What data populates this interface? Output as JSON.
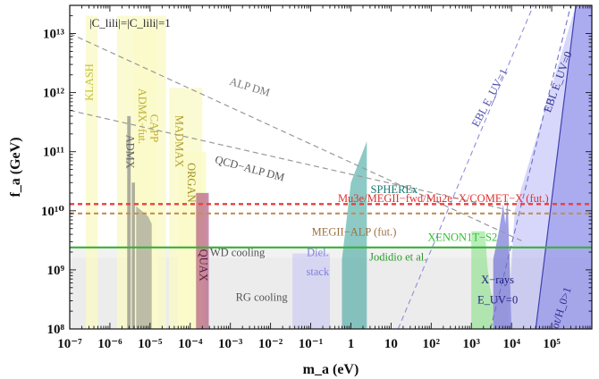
{
  "chart_data": {
    "type": "area",
    "title": "",
    "xlabel": "m_a (eV)",
    "ylabel": "f_a (GeV)",
    "x_scale": "log",
    "y_scale": "log",
    "xlim": [
      1e-07,
      1000000.0
    ],
    "ylim": [
      100000000.0,
      30000000000000.0
    ],
    "x_ticks": [
      {
        "value": 1e-07,
        "label": "10⁻⁷"
      },
      {
        "value": 1e-06,
        "label": "10⁻⁶"
      },
      {
        "value": 1e-05,
        "label": "10⁻⁵"
      },
      {
        "value": 0.0001,
        "label": "10⁻⁴"
      },
      {
        "value": 0.001,
        "label": "10⁻³"
      },
      {
        "value": 0.01,
        "label": "10⁻²"
      },
      {
        "value": 0.1,
        "label": "10⁻¹"
      },
      {
        "value": 1,
        "label": "1"
      },
      {
        "value": 10,
        "label": "10"
      },
      {
        "value": 100,
        "label": "10²"
      },
      {
        "value": 1000,
        "label": "10³"
      },
      {
        "value": 10000,
        "label": "10⁴"
      },
      {
        "value": 100000,
        "label": "10⁵"
      }
    ],
    "y_ticks": [
      {
        "value": 100000000.0,
        "label": "10⁸"
      },
      {
        "value": 1000000000.0,
        "label": "10⁹"
      },
      {
        "value": 10000000000.0,
        "label": "10¹⁰"
      },
      {
        "value": 100000000000.0,
        "label": "10¹¹"
      },
      {
        "value": 1000000000000.0,
        "label": "10¹²"
      },
      {
        "value": 10000000000000.0,
        "label": "10¹³"
      }
    ],
    "coupling_note": "|C_lili|=|C_lili|=1",
    "regions": [
      {
        "name": "RG cooling",
        "color": "#d9d9d9",
        "opacity": 0.5,
        "points": [
          [
            1e-07,
            100000000.0
          ],
          [
            1000000.0,
            100000000.0
          ],
          [
            1000000.0,
            1600000000.0
          ],
          [
            1e-07,
            1600000000.0
          ]
        ]
      },
      {
        "name": "WD cooling",
        "color": "#e3e3e3",
        "opacity": 0.45,
        "points": [
          [
            1e-07,
            1600000000.0
          ],
          [
            1000000.0,
            1600000000.0
          ],
          [
            1000000.0,
            2500000000.0
          ],
          [
            1e-07,
            2500000000.0
          ]
        ]
      },
      {
        "name": "KLASH",
        "color": "#fafac8",
        "opacity": 0.8,
        "points": [
          [
            2.5e-07,
            100000000.0
          ],
          [
            2.5e-07,
            20000000000000.0
          ],
          [
            5e-07,
            20000000000000.0
          ],
          [
            5e-07,
            100000000.0
          ]
        ]
      },
      {
        "name": "ADMX-fut.",
        "color": "#fafac8",
        "opacity": 0.8,
        "points": [
          [
            1.5e-06,
            100000000.0
          ],
          [
            1.5e-06,
            20000000000000.0
          ],
          [
            2.5e-05,
            20000000000000.0
          ],
          [
            2.5e-05,
            100000000.0
          ]
        ]
      },
      {
        "name": "CAPP",
        "color": "#fafac8",
        "opacity": 0.8,
        "points": [
          [
            4e-06,
            100000000.0
          ],
          [
            4e-06,
            15000000000000.0
          ],
          [
            1.5e-05,
            15000000000000.0
          ],
          [
            1.5e-05,
            100000000.0
          ]
        ]
      },
      {
        "name": "MADMAX",
        "color": "#fafac8",
        "opacity": 0.8,
        "points": [
          [
            3e-05,
            100000000.0
          ],
          [
            3e-05,
            1200000000000.0
          ],
          [
            0.0002,
            1200000000000.0
          ],
          [
            0.0002,
            100000000.0
          ]
        ]
      },
      {
        "name": "ORGAN",
        "color": "#fafac8",
        "opacity": 0.8,
        "points": [
          [
            5e-05,
            100000000.0
          ],
          [
            5e-05,
            100000000000.0
          ],
          [
            0.00025,
            100000000000.0
          ],
          [
            0.00025,
            100000000.0
          ]
        ]
      },
      {
        "name": "ADMX",
        "color": "#7a7a7a",
        "opacity": 0.6,
        "points": [
          [
            2.7e-06,
            100000000.0
          ],
          [
            2.7e-06,
            400000000000.0
          ],
          [
            3.3e-06,
            400000000000.0
          ],
          [
            3.3e-06,
            100000000.0
          ]
        ]
      },
      {
        "name": "ADMX-2",
        "color": "#7a7a7a",
        "opacity": 0.6,
        "points": [
          [
            3.5e-06,
            100000000.0
          ],
          [
            3.5e-06,
            30000000000.0
          ],
          [
            4.2e-06,
            30000000000.0
          ],
          [
            4.2e-06,
            100000000.0
          ]
        ]
      },
      {
        "name": "ADMX-3",
        "color": "#8a8a8a",
        "opacity": 0.55,
        "points": [
          [
            4.5e-06,
            100000000.0
          ],
          [
            4.5e-06,
            12000000000.0
          ],
          [
            9e-06,
            8000000000.0
          ],
          [
            1.1e-05,
            6000000000.0
          ],
          [
            1.1e-05,
            100000000.0
          ]
        ]
      },
      {
        "name": "QUAX",
        "color": "#a0306a",
        "opacity": 0.55,
        "points": [
          [
            0.00014,
            100000000.0
          ],
          [
            0.00014,
            20000000000.0
          ],
          [
            0.00029,
            20000000000.0
          ],
          [
            0.00029,
            100000000.0
          ]
        ]
      },
      {
        "name": "Diel. stack",
        "color": "#c8c8f5",
        "opacity": 0.6,
        "points": [
          [
            0.035,
            100000000.0
          ],
          [
            0.035,
            1900000000.0
          ],
          [
            0.3,
            1900000000.0
          ],
          [
            0.3,
            100000000.0
          ]
        ]
      },
      {
        "name": "SPHEREx",
        "color": "#2f9e96",
        "opacity": 0.55,
        "points": [
          [
            0.6,
            100000000.0
          ],
          [
            0.6,
            1500000000.0
          ],
          [
            1.0,
            30000000000.0
          ],
          [
            2.5,
            150000000000.0
          ],
          [
            2.5,
            100000000.0
          ]
        ]
      },
      {
        "name": "XENON1T-S2",
        "color": "#7fe07f",
        "opacity": 0.55,
        "points": [
          [
            1000,
            100000000.0
          ],
          [
            1000,
            4500000000.0
          ],
          [
            2200,
            4500000000.0
          ],
          [
            2500,
            1200000000.0
          ],
          [
            2900,
            500000000.0
          ],
          [
            3500,
            300000000.0
          ],
          [
            3500,
            100000000.0
          ]
        ]
      },
      {
        "name": "X-rays E_UV=0",
        "color": "#5050d0",
        "opacity": 0.55,
        "points": [
          [
            3500,
            100000000.0
          ],
          [
            3500,
            1500000000.0
          ],
          [
            5000,
            5000000000.0
          ],
          [
            6200,
            13000000000.0
          ],
          [
            7000,
            6000000000.0
          ],
          [
            8000,
            17000000000.0
          ],
          [
            10000,
            100000000.0
          ]
        ]
      },
      {
        "name": "EBL E_UV=0",
        "color": "#9a9af5",
        "opacity": 0.4,
        "points": [
          [
            8000,
            100000000.0
          ],
          [
            12000,
            10000000000.0
          ],
          [
            400000.0,
            30000000000000.0
          ],
          [
            1000000.0,
            30000000000000.0
          ],
          [
            1000000.0,
            100000000.0
          ]
        ]
      },
      {
        "name": "Gamma_tot/H_0>1",
        "color": "#8080e5",
        "opacity": 0.5,
        "points": [
          [
            40000,
            100000000.0
          ],
          [
            400000.0,
            30000000000000.0
          ],
          [
            1000000.0,
            30000000000000.0
          ],
          [
            1000000.0,
            100000000.0
          ]
        ]
      }
    ],
    "lines": [
      {
        "name": "ALP DM",
        "color": "#999999",
        "dash": "6,4",
        "width": 1.2,
        "points": [
          [
            1e-07,
            10000000000000.0
          ],
          [
            20000.0,
            3000000000.0
          ]
        ]
      },
      {
        "name": "QCD-ALP DM",
        "color": "#999999",
        "dash": "6,4",
        "width": 1.2,
        "points": [
          [
            1e-07,
            500000000000.0
          ],
          [
            10000.0,
            10000000000.0
          ]
        ]
      },
      {
        "name": "EBL E_UV=1",
        "color": "#8f8fd8",
        "dash": "6,4",
        "width": 1.1,
        "points": [
          [
            15,
            100000000.0
          ],
          [
            35000.0,
            30000000000000.0
          ]
        ]
      },
      {
        "name": "EBL E_UV=0",
        "color": "#7070c8",
        "dash": "6,4",
        "width": 1.1,
        "points": [
          [
            3000,
            100000000.0
          ],
          [
            300000.0,
            30000000000000.0
          ]
        ]
      },
      {
        "name": "Gamma_tot/H_0>1",
        "color": "#4040b0",
        "dash": "",
        "width": 1.2,
        "points": [
          [
            40000,
            100000000.0
          ],
          [
            400000.0,
            30000000000000.0
          ]
        ]
      },
      {
        "name": "Mu3e/MEGII-fwd/Mu2e-X/COMET-X (fut.)",
        "color": "#e8403f",
        "dash": "5,4",
        "width": 2.4,
        "points": [
          [
            1e-07,
            13000000000.0
          ],
          [
            1000000.0,
            13000000000.0
          ]
        ]
      },
      {
        "name": "MEGII-ALP (fut.)",
        "color": "#c08f5a",
        "dash": "5,4",
        "width": 2.2,
        "points": [
          [
            1e-07,
            9000000000.0
          ],
          [
            1000000.0,
            9000000000.0
          ]
        ]
      },
      {
        "name": "Jodidio et al.",
        "color": "#3ab03a",
        "dash": "",
        "width": 2.2,
        "points": [
          [
            1e-07,
            2400000000.0
          ],
          [
            1000000.0,
            2400000000.0
          ]
        ]
      }
    ],
    "labels": [
      {
        "name": "KLASH",
        "text": "KLASH",
        "color": "#c8c040",
        "x": 3.3e-07,
        "y": 1500000000000.0,
        "rotate": -90
      },
      {
        "name": "ADMX-fut.",
        "text": "ADMX−fut.",
        "color": "#c0b030",
        "x": 6e-06,
        "y": 400000000000.0,
        "rotate": 90
      },
      {
        "name": "CAPP",
        "text": "CAPP",
        "color": "#c0b030",
        "x": 1.2e-05,
        "y": 250000000000.0,
        "rotate": 90
      },
      {
        "name": "MADMAX",
        "text": "MADMAX",
        "color": "#b0a030",
        "x": 5e-05,
        "y": 150000000000.0,
        "rotate": 90
      },
      {
        "name": "ADMX",
        "text": "ADMX",
        "color": "#666666",
        "x": 3e-06,
        "y": 100000000000.0,
        "rotate": 90
      },
      {
        "name": "ORGAN",
        "text": "ORGAN",
        "color": "#a09020",
        "x": 0.0001,
        "y": 30000000000.0,
        "rotate": 90
      },
      {
        "name": "QUAX",
        "text": "QUAX",
        "color": "#5a1a40",
        "x": 0.0002,
        "y": 1200000000.0,
        "rotate": 90
      },
      {
        "name": "WD cooling",
        "text": "WD cooling",
        "color": "#555555",
        "x": 0.0015,
        "y": 1900000000.0,
        "rotate": 0
      },
      {
        "name": "RG cooling",
        "text": "RG cooling",
        "color": "#555555",
        "x": 0.006,
        "y": 330000000.0,
        "rotate": 0
      },
      {
        "name": "Diel. stack",
        "text": "Diel.",
        "color": "#8080e0",
        "x": 0.15,
        "y": 1900000000.0,
        "rotate": 0
      },
      {
        "name": "Diel. stack 2",
        "text": "stack",
        "color": "#8080e0",
        "x": 0.15,
        "y": 900000000.0,
        "rotate": 0
      },
      {
        "name": "SPHEREx",
        "text": "SPHEREx",
        "color": "#1a7a72",
        "x": 12,
        "y": 22000000000.0,
        "rotate": 0
      },
      {
        "name": "Mu3e",
        "text": "Mu3e/MEGII−fwd/Mu2e−X/COMET−X (fut.)",
        "color": "#e03030",
        "x": 200,
        "y": 15500000000.0,
        "rotate": 0
      },
      {
        "name": "MEGII-ALP",
        "text": "MEGII−ALP (fut.)",
        "color": "#a07040",
        "x": 1.2,
        "y": 4200000000.0,
        "rotate": 0
      },
      {
        "name": "XENON1T-S2",
        "text": "XENON1T−S2",
        "color": "#30c030",
        "x": 600,
        "y": 3400000000.0,
        "rotate": 0
      },
      {
        "name": "Jodidio",
        "text": "Jodidio et al.",
        "color": "#2a9a2a",
        "x": 15,
        "y": 1600000000.0,
        "rotate": 0
      },
      {
        "name": "X-rays",
        "text": "X−rays",
        "color": "#202080",
        "x": 4500,
        "y": 650000000.0,
        "rotate": 0
      },
      {
        "name": "E_UV=0",
        "text": "E_UV=0",
        "color": "#202080",
        "x": 4500,
        "y": 300000000.0,
        "rotate": 0
      },
      {
        "name": "ALP DM",
        "text": "ALP DM",
        "color": "#777777",
        "x": 0.003,
        "y": 1200000000000.0,
        "rotate": 17
      },
      {
        "name": "QCD-ALP DM",
        "text": "QCD−ALP DM",
        "color": "#555555",
        "x": 0.003,
        "y": 50000000000.0,
        "rotate": 15
      },
      {
        "name": "EBL E_UV=1",
        "text": "EBL E_UV=1",
        "color": "#4a4ab0",
        "x": 3000,
        "y": 800000000000.0,
        "rotate": -62
      },
      {
        "name": "EBL E_UV=0",
        "text": "EBL E_UV=0",
        "color": "#303090",
        "x": 150000.0,
        "y": 1500000000000.0,
        "rotate": -70
      },
      {
        "name": "Gamma_tot/H_0>1",
        "text": "Γ_tot/H_0>1",
        "color": "#303090",
        "x": 160000.0,
        "y": 170000000.0,
        "rotate": -72
      }
    ]
  }
}
